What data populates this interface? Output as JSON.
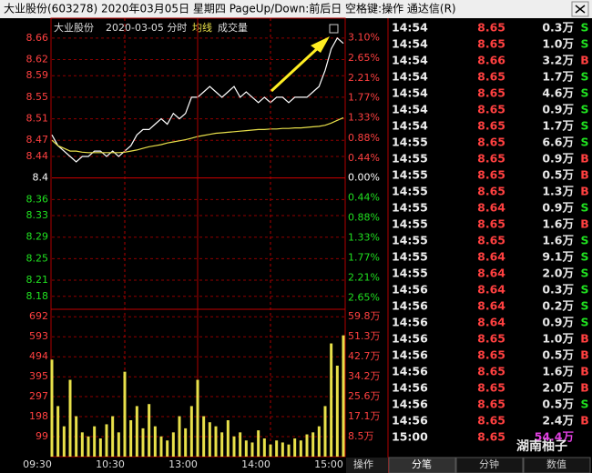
{
  "window": {
    "title": "大业股份(603278) 2020年03月05日 星期四 PageUp/Down:前后日 空格键:操作 通达信(R)"
  },
  "chart_data": [
    {
      "type": "line",
      "title": "大业股份",
      "subtitle": "2020-03-05 分时",
      "series": [
        {
          "color": "#ffffff",
          "values": [
            8.48,
            8.46,
            8.45,
            8.44,
            8.43,
            8.44,
            8.44,
            8.45,
            8.45,
            8.44,
            8.45,
            8.44,
            8.45,
            8.46,
            8.48,
            8.49,
            8.49,
            8.5,
            8.51,
            8.5,
            8.52,
            8.51,
            8.52,
            8.55,
            8.55,
            8.56,
            8.57,
            8.56,
            8.55,
            8.56,
            8.57,
            8.55,
            8.56,
            8.55,
            8.54,
            8.55,
            8.54,
            8.55,
            8.55,
            8.54,
            8.55,
            8.55,
            8.55,
            8.56,
            8.57,
            8.6,
            8.64,
            8.66,
            8.65
          ]
        },
        {
          "name": "均线",
          "color": "#e8e04a",
          "values": [
            8.47,
            8.46,
            8.455,
            8.45,
            8.45,
            8.448,
            8.447,
            8.447,
            8.447,
            8.447,
            8.447,
            8.447,
            8.448,
            8.45,
            8.452,
            8.455,
            8.458,
            8.46,
            8.462,
            8.465,
            8.467,
            8.469,
            8.471,
            8.474,
            8.477,
            8.479,
            8.481,
            8.483,
            8.484,
            8.485,
            8.486,
            8.487,
            8.488,
            8.489,
            8.49,
            8.49,
            8.491,
            8.491,
            8.492,
            8.492,
            8.493,
            8.493,
            8.494,
            8.495,
            8.496,
            8.498,
            8.502,
            8.507,
            8.512
          ]
        }
      ],
      "ylim": [
        8.156,
        8.68
      ],
      "yticks": [
        8.66,
        8.62,
        8.59,
        8.55,
        8.51,
        8.47,
        8.44,
        8.4,
        8.36,
        8.33,
        8.29,
        8.25,
        8.21,
        8.18
      ],
      "y2lim": [
        -2.905,
        3.333
      ],
      "y2ticks": [
        {
          "value": 3.1,
          "label": "3.10%"
        },
        {
          "value": 2.65,
          "label": "2.65%"
        },
        {
          "value": 2.21,
          "label": "2.21%"
        },
        {
          "value": 1.77,
          "label": "1.77%"
        },
        {
          "value": 1.33,
          "label": "1.33%"
        },
        {
          "value": 0.88,
          "label": "0.88%"
        },
        {
          "value": 0.44,
          "label": "0.44%"
        },
        {
          "value": 0,
          "label": "0.00%"
        },
        {
          "value": -0.44,
          "label": "0.44%"
        },
        {
          "value": -0.88,
          "label": "0.88%"
        },
        {
          "value": -1.33,
          "label": "1.33%"
        },
        {
          "value": -1.77,
          "label": "1.77%"
        },
        {
          "value": -2.21,
          "label": "2.21%"
        },
        {
          "value": -2.65,
          "label": "2.65%"
        }
      ],
      "grid": true
    },
    {
      "type": "bar",
      "categories": [
        "09:30",
        null,
        null,
        null,
        null,
        null,
        null,
        null,
        null,
        null,
        null,
        null,
        "10:30",
        null,
        null,
        null,
        null,
        null,
        null,
        null,
        null,
        null,
        null,
        null,
        "13:00",
        null,
        null,
        null,
        null,
        null,
        null,
        null,
        null,
        null,
        null,
        null,
        "14:00",
        null,
        null,
        null,
        null,
        null,
        null,
        null,
        null,
        null,
        null,
        null,
        "15:00"
      ],
      "series": [
        {
          "name": "成交量",
          "color": "#e8e04a",
          "values": [
            480,
            250,
            150,
            380,
            200,
            120,
            100,
            150,
            90,
            160,
            200,
            120,
            420,
            180,
            250,
            140,
            260,
            150,
            100,
            80,
            120,
            200,
            140,
            250,
            380,
            200,
            170,
            150,
            120,
            180,
            100,
            120,
            80,
            70,
            130,
            90,
            60,
            80,
            70,
            60,
            90,
            80,
            110,
            120,
            150,
            250,
            560,
            450,
            600
          ]
        }
      ],
      "ylim": [
        0,
        729
      ],
      "yticks": [
        692,
        593,
        494,
        395,
        297,
        198,
        99
      ],
      "y2lim": [
        0,
        63.0
      ],
      "y2ticks": [
        {
          "value": 59.8,
          "label": "59.8万"
        },
        {
          "value": 51.3,
          "label": "51.3万"
        },
        {
          "value": 42.7,
          "label": "42.7万"
        },
        {
          "value": 34.2,
          "label": "34.2万"
        },
        {
          "value": 25.6,
          "label": "25.6万"
        },
        {
          "value": 17.1,
          "label": "17.1万"
        },
        {
          "value": 8.5,
          "label": "8.5万"
        }
      ],
      "grid": true
    }
  ],
  "action_tab": "操作",
  "trades": {
    "rows": [
      [
        "14:54",
        "8.65",
        "0.3万",
        "S"
      ],
      [
        "14:54",
        "8.65",
        "1.0万",
        "S"
      ],
      [
        "14:54",
        "8.66",
        "3.2万",
        "B"
      ],
      [
        "14:54",
        "8.65",
        "1.7万",
        "S"
      ],
      [
        "14:54",
        "8.65",
        "4.6万",
        "S"
      ],
      [
        "14:54",
        "8.65",
        "0.9万",
        "S"
      ],
      [
        "14:54",
        "8.65",
        "1.7万",
        "S"
      ],
      [
        "14:55",
        "8.65",
        "6.6万",
        "S"
      ],
      [
        "14:55",
        "8.65",
        "0.9万",
        "B"
      ],
      [
        "14:55",
        "8.65",
        "0.5万",
        "B"
      ],
      [
        "14:55",
        "8.65",
        "1.3万",
        "B"
      ],
      [
        "14:55",
        "8.64",
        "0.9万",
        "S"
      ],
      [
        "14:55",
        "8.65",
        "1.6万",
        "B"
      ],
      [
        "14:55",
        "8.65",
        "1.6万",
        "S"
      ],
      [
        "14:55",
        "8.64",
        "9.1万",
        "S"
      ],
      [
        "14:55",
        "8.64",
        "2.0万",
        "S"
      ],
      [
        "14:56",
        "8.64",
        "0.3万",
        "S"
      ],
      [
        "14:56",
        "8.64",
        "0.2万",
        "S"
      ],
      [
        "14:56",
        "8.64",
        "0.9万",
        "S"
      ],
      [
        "14:56",
        "8.65",
        "1.0万",
        "B"
      ],
      [
        "14:56",
        "8.65",
        "0.5万",
        "B"
      ],
      [
        "14:56",
        "8.65",
        "1.6万",
        "B"
      ],
      [
        "14:56",
        "8.65",
        "2.0万",
        "B"
      ],
      [
        "14:56",
        "8.65",
        "0.5万",
        "S"
      ],
      [
        "14:56",
        "8.65",
        "2.4万",
        "B"
      ],
      [
        "15:00",
        "8.65",
        "54.4万"
      ]
    ]
  },
  "tabs": [
    "分笔",
    "分钟",
    "数值"
  ],
  "watermark": "湖南柚子"
}
